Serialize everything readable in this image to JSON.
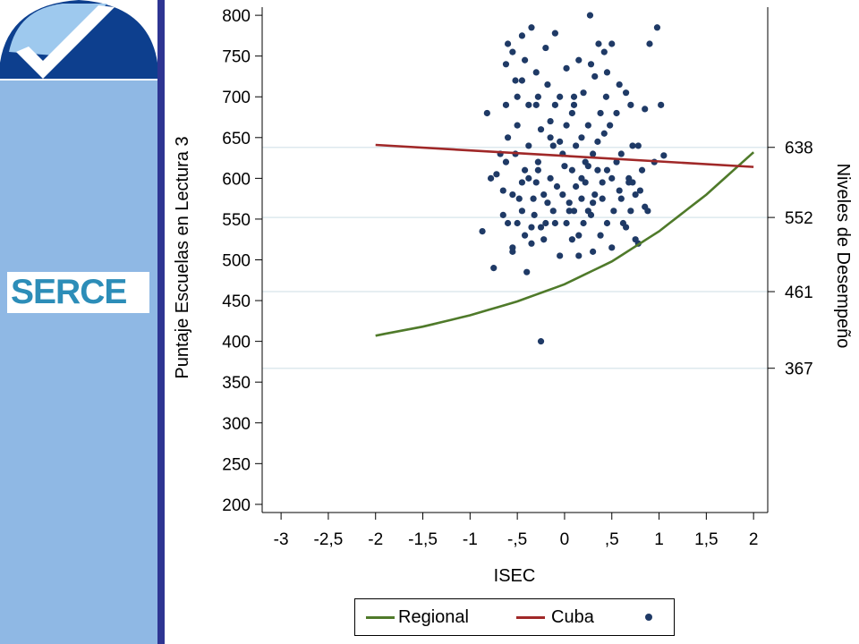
{
  "branding": {
    "logo_name": "checkmark-logo",
    "brand_text": "SERCE",
    "colors": {
      "sidebar": "#8fb8e4",
      "rule": "#2e3592",
      "logo_dark": "#0d3f8e",
      "logo_light": "#9ec9ee",
      "brand_text": "#2c8db8"
    }
  },
  "chart_data": {
    "type": "scatter",
    "xlabel": "ISEC",
    "ylabel": "Puntaje Escuelas en Lectura 3",
    "y2label": "Niveles de Desempeño",
    "xlim": [
      -3.2,
      2.15
    ],
    "ylim": [
      190,
      810
    ],
    "x_ticks": [
      -3,
      -2.5,
      -2,
      -1.5,
      -1,
      -0.5,
      0,
      0.5,
      1,
      1.5,
      2
    ],
    "x_tick_labels": [
      "-3",
      "-2,5",
      "-2",
      "-1,5",
      "-1",
      "-,5",
      "0",
      ",5",
      "1",
      "1,5",
      "2"
    ],
    "y_ticks": [
      200,
      250,
      300,
      350,
      400,
      450,
      500,
      550,
      600,
      650,
      700,
      750,
      800
    ],
    "y_tick_labels": [
      "200",
      "250",
      "300",
      "350",
      "400",
      "450",
      "500",
      "550",
      "600",
      "650",
      "700",
      "750",
      "800"
    ],
    "right_axis": {
      "ticks": [
        367,
        461,
        552,
        638
      ],
      "tick_labels": [
        "367",
        "461",
        "552",
        "638"
      ],
      "reference_lines": true
    },
    "legend": {
      "placement": "bottom",
      "entries": [
        "Regional",
        "Cuba",
        ""
      ]
    },
    "colors": {
      "regional": "#4f7a2a",
      "cuba": "#a02828",
      "points": "#1f3a66",
      "refline": "#dde9ee"
    },
    "series": [
      {
        "name": "Regional",
        "kind": "curve",
        "x": [
          -2,
          -1.5,
          -1,
          -0.5,
          0,
          0.5,
          1,
          1.5,
          2
        ],
        "y": [
          407,
          418,
          432,
          449,
          470,
          498,
          535,
          580,
          632
        ]
      },
      {
        "name": "Cuba",
        "kind": "line",
        "x": [
          -2,
          2
        ],
        "y": [
          641,
          614
        ]
      },
      {
        "name": "",
        "kind": "points",
        "points": [
          [
            -0.87,
            535
          ],
          [
            -0.75,
            490
          ],
          [
            -0.65,
            555
          ],
          [
            -0.55,
            515
          ],
          [
            -0.4,
            485
          ],
          [
            -0.25,
            400
          ],
          [
            -0.82,
            680
          ],
          [
            -0.68,
            630
          ],
          [
            -0.6,
            765
          ],
          [
            -0.52,
            720
          ],
          [
            -0.45,
            775
          ],
          [
            -0.35,
            785
          ],
          [
            -0.28,
            700
          ],
          [
            -0.2,
            760
          ],
          [
            -0.1,
            778
          ],
          [
            0.02,
            735
          ],
          [
            0.1,
            690
          ],
          [
            0.18,
            650
          ],
          [
            0.27,
            800
          ],
          [
            0.36,
            765
          ],
          [
            0.45,
            730
          ],
          [
            0.55,
            680
          ],
          [
            0.65,
            705
          ],
          [
            0.72,
            640
          ],
          [
            0.8,
            585
          ],
          [
            0.9,
            765
          ],
          [
            0.98,
            785
          ],
          [
            1.02,
            690
          ],
          [
            1.05,
            628
          ],
          [
            0.95,
            620
          ],
          [
            0.85,
            565
          ],
          [
            0.75,
            525
          ],
          [
            0.62,
            545
          ],
          [
            0.5,
            515
          ],
          [
            0.38,
            530
          ],
          [
            0.25,
            560
          ],
          [
            0.12,
            590
          ],
          [
            0,
            615
          ],
          [
            -0.12,
            640
          ],
          [
            -0.25,
            660
          ],
          [
            -0.38,
            690
          ],
          [
            -0.5,
            665
          ],
          [
            -0.62,
            620
          ],
          [
            -0.72,
            605
          ],
          [
            -0.55,
            580
          ],
          [
            -0.45,
            560
          ],
          [
            -0.35,
            540
          ],
          [
            -0.22,
            525
          ],
          [
            -0.1,
            545
          ],
          [
            0.05,
            570
          ],
          [
            0.18,
            600
          ],
          [
            0.3,
            630
          ],
          [
            0.42,
            655
          ],
          [
            0.55,
            620
          ],
          [
            0.68,
            600
          ],
          [
            0.78,
            640
          ],
          [
            0.88,
            560
          ],
          [
            0.7,
            560
          ],
          [
            0.58,
            585
          ],
          [
            0.45,
            610
          ],
          [
            0.32,
            580
          ],
          [
            0.2,
            545
          ],
          [
            0.08,
            525
          ],
          [
            -0.05,
            505
          ],
          [
            -0.18,
            570
          ],
          [
            -0.3,
            595
          ],
          [
            -0.42,
            610
          ],
          [
            -0.52,
            630
          ],
          [
            -0.65,
            585
          ],
          [
            -0.6,
            545
          ],
          [
            -0.48,
            575
          ],
          [
            -0.38,
            600
          ],
          [
            -0.28,
            620
          ],
          [
            -0.15,
            600
          ],
          [
            -0.02,
            580
          ],
          [
            0.1,
            560
          ],
          [
            0.22,
            620
          ],
          [
            0.35,
            645
          ],
          [
            0.48,
            665
          ],
          [
            0.6,
            630
          ],
          [
            0.72,
            595
          ],
          [
            0.82,
            610
          ],
          [
            0.65,
            540
          ],
          [
            0.52,
            560
          ],
          [
            0.4,
            575
          ],
          [
            0.28,
            555
          ],
          [
            0.15,
            530
          ],
          [
            0.02,
            545
          ],
          [
            -0.12,
            560
          ],
          [
            -0.22,
            580
          ],
          [
            -0.32,
            555
          ],
          [
            -0.42,
            530
          ],
          [
            -0.55,
            510
          ],
          [
            -0.5,
            700
          ],
          [
            -0.42,
            745
          ],
          [
            -0.3,
            730
          ],
          [
            -0.18,
            715
          ],
          [
            -0.05,
            700
          ],
          [
            0.08,
            680
          ],
          [
            0.2,
            705
          ],
          [
            0.32,
            725
          ],
          [
            0.44,
            700
          ],
          [
            0.58,
            715
          ],
          [
            0.7,
            690
          ],
          [
            0.85,
            685
          ],
          [
            0.3,
            510
          ],
          [
            0.15,
            505
          ],
          [
            -0.25,
            540
          ],
          [
            -0.33,
            575
          ],
          [
            -0.45,
            595
          ],
          [
            0.6,
            575
          ],
          [
            0.75,
            580
          ],
          [
            0.4,
            595
          ],
          [
            -0.02,
            630
          ],
          [
            0.12,
            640
          ],
          [
            0.25,
            615
          ],
          [
            -0.15,
            650
          ],
          [
            -0.38,
            640
          ],
          [
            -0.6,
            650
          ],
          [
            -0.78,
            600
          ],
          [
            0.5,
            600
          ],
          [
            0.35,
            610
          ],
          [
            0.22,
            595
          ],
          [
            0.08,
            610
          ],
          [
            -0.08,
            590
          ],
          [
            -0.28,
            610
          ],
          [
            -0.5,
            545
          ],
          [
            -0.35,
            520
          ],
          [
            -0.2,
            545
          ],
          [
            0.05,
            560
          ],
          [
            0.18,
            575
          ],
          [
            0.68,
            595
          ],
          [
            0.78,
            520
          ],
          [
            0.45,
            545
          ],
          [
            0.3,
            570
          ],
          [
            -0.05,
            645
          ],
          [
            0.25,
            665
          ],
          [
            0.38,
            680
          ],
          [
            -0.15,
            670
          ],
          [
            -0.3,
            690
          ],
          [
            -0.45,
            720
          ],
          [
            -0.62,
            740
          ],
          [
            -0.55,
            755
          ],
          [
            0.1,
            700
          ],
          [
            0.02,
            665
          ],
          [
            -0.1,
            690
          ],
          [
            0.15,
            745
          ],
          [
            0.28,
            740
          ],
          [
            0.5,
            765
          ],
          [
            0.42,
            755
          ],
          [
            -0.62,
            690
          ]
        ]
      }
    ]
  },
  "legend_items": {
    "regional": "Regional",
    "cuba": "Cuba"
  }
}
